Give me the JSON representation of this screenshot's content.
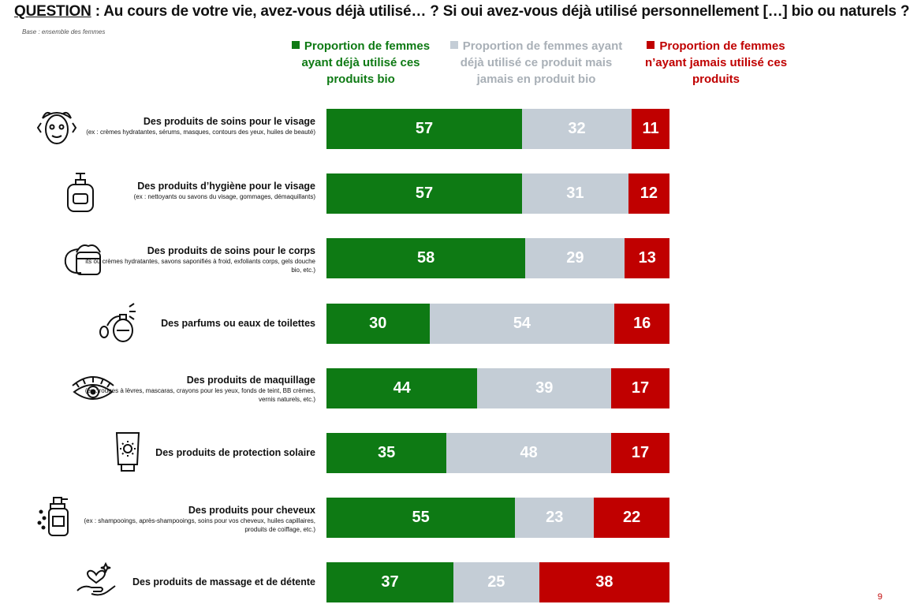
{
  "header": {
    "question_label": "QUESTION",
    "question_text": " : Au cours de votre vie, avez-vous déjà utilisé… ? Si oui avez-vous déjà utilisé personnellement […] bio ou naturels ?",
    "base_note": "Base : ensemble des femmes"
  },
  "legend": {
    "green": "Proportion de femmes ayant déjà utilisé ces produits bio",
    "grey": "Proportion de femmes ayant déjà utilisé ce produit mais jamais en produit bio",
    "red": "Proportion de femmes n’ayant jamais utilisé ces produits"
  },
  "colors": {
    "green": "#0e7a14",
    "grey": "#c4cdd6",
    "red": "#c00000",
    "legend_grey": "#a9b0b7"
  },
  "chart_data": {
    "type": "bar",
    "orientation": "horizontal",
    "stacked": true,
    "xlim": [
      0,
      100
    ],
    "categories": [
      "Des produits de soins pour le visage",
      "Des produits d’hygiène pour le visage",
      "Des produits de soins pour le corps",
      "Des parfums ou eaux de toilettes",
      "Des produits de maquillage",
      "Des produits de protection solaire",
      "Des produits pour cheveux",
      "Des produits de massage et de détente"
    ],
    "subtitles": [
      "(ex : crèmes hydratantes, sérums, masques, contours des yeux, huiles de beauté)",
      "(ex : nettoyants ou savons du visage, gommages, démaquillants)",
      "its ou crèmes hydratantes, savons saponifiés à froid, exfoliants corps, gels douche bio, etc.)",
      "",
      "(ex : rouges à lèvres, mascaras, crayons pour les yeux, fonds de teint, BB crèmes, vernis naturels, etc.)",
      "",
      "(ex : shampooings, après-shampooings, soins pour vos cheveux, huiles capillaires, produits de coiffage, etc.)",
      ""
    ],
    "icons": [
      "face-mask-icon",
      "soap-bottle-icon",
      "cream-jar-icon",
      "perfume-icon",
      "eye-makeup-icon",
      "sunscreen-icon",
      "hair-product-icon",
      "massage-hand-icon"
    ],
    "series": [
      {
        "name": "Proportion de femmes ayant déjà utilisé ces produits bio",
        "color": "#0e7a14",
        "values": [
          57,
          57,
          58,
          30,
          44,
          35,
          55,
          37
        ]
      },
      {
        "name": "Proportion de femmes ayant déjà utilisé ce produit mais jamais en produit bio",
        "color": "#c4cdd6",
        "values": [
          32,
          31,
          29,
          54,
          39,
          48,
          23,
          25
        ]
      },
      {
        "name": "Proportion de femmes n’ayant jamais utilisé ces produits",
        "color": "#c00000",
        "values": [
          11,
          12,
          13,
          16,
          17,
          17,
          22,
          38
        ]
      }
    ]
  },
  "footer": {
    "page_number": "9"
  }
}
